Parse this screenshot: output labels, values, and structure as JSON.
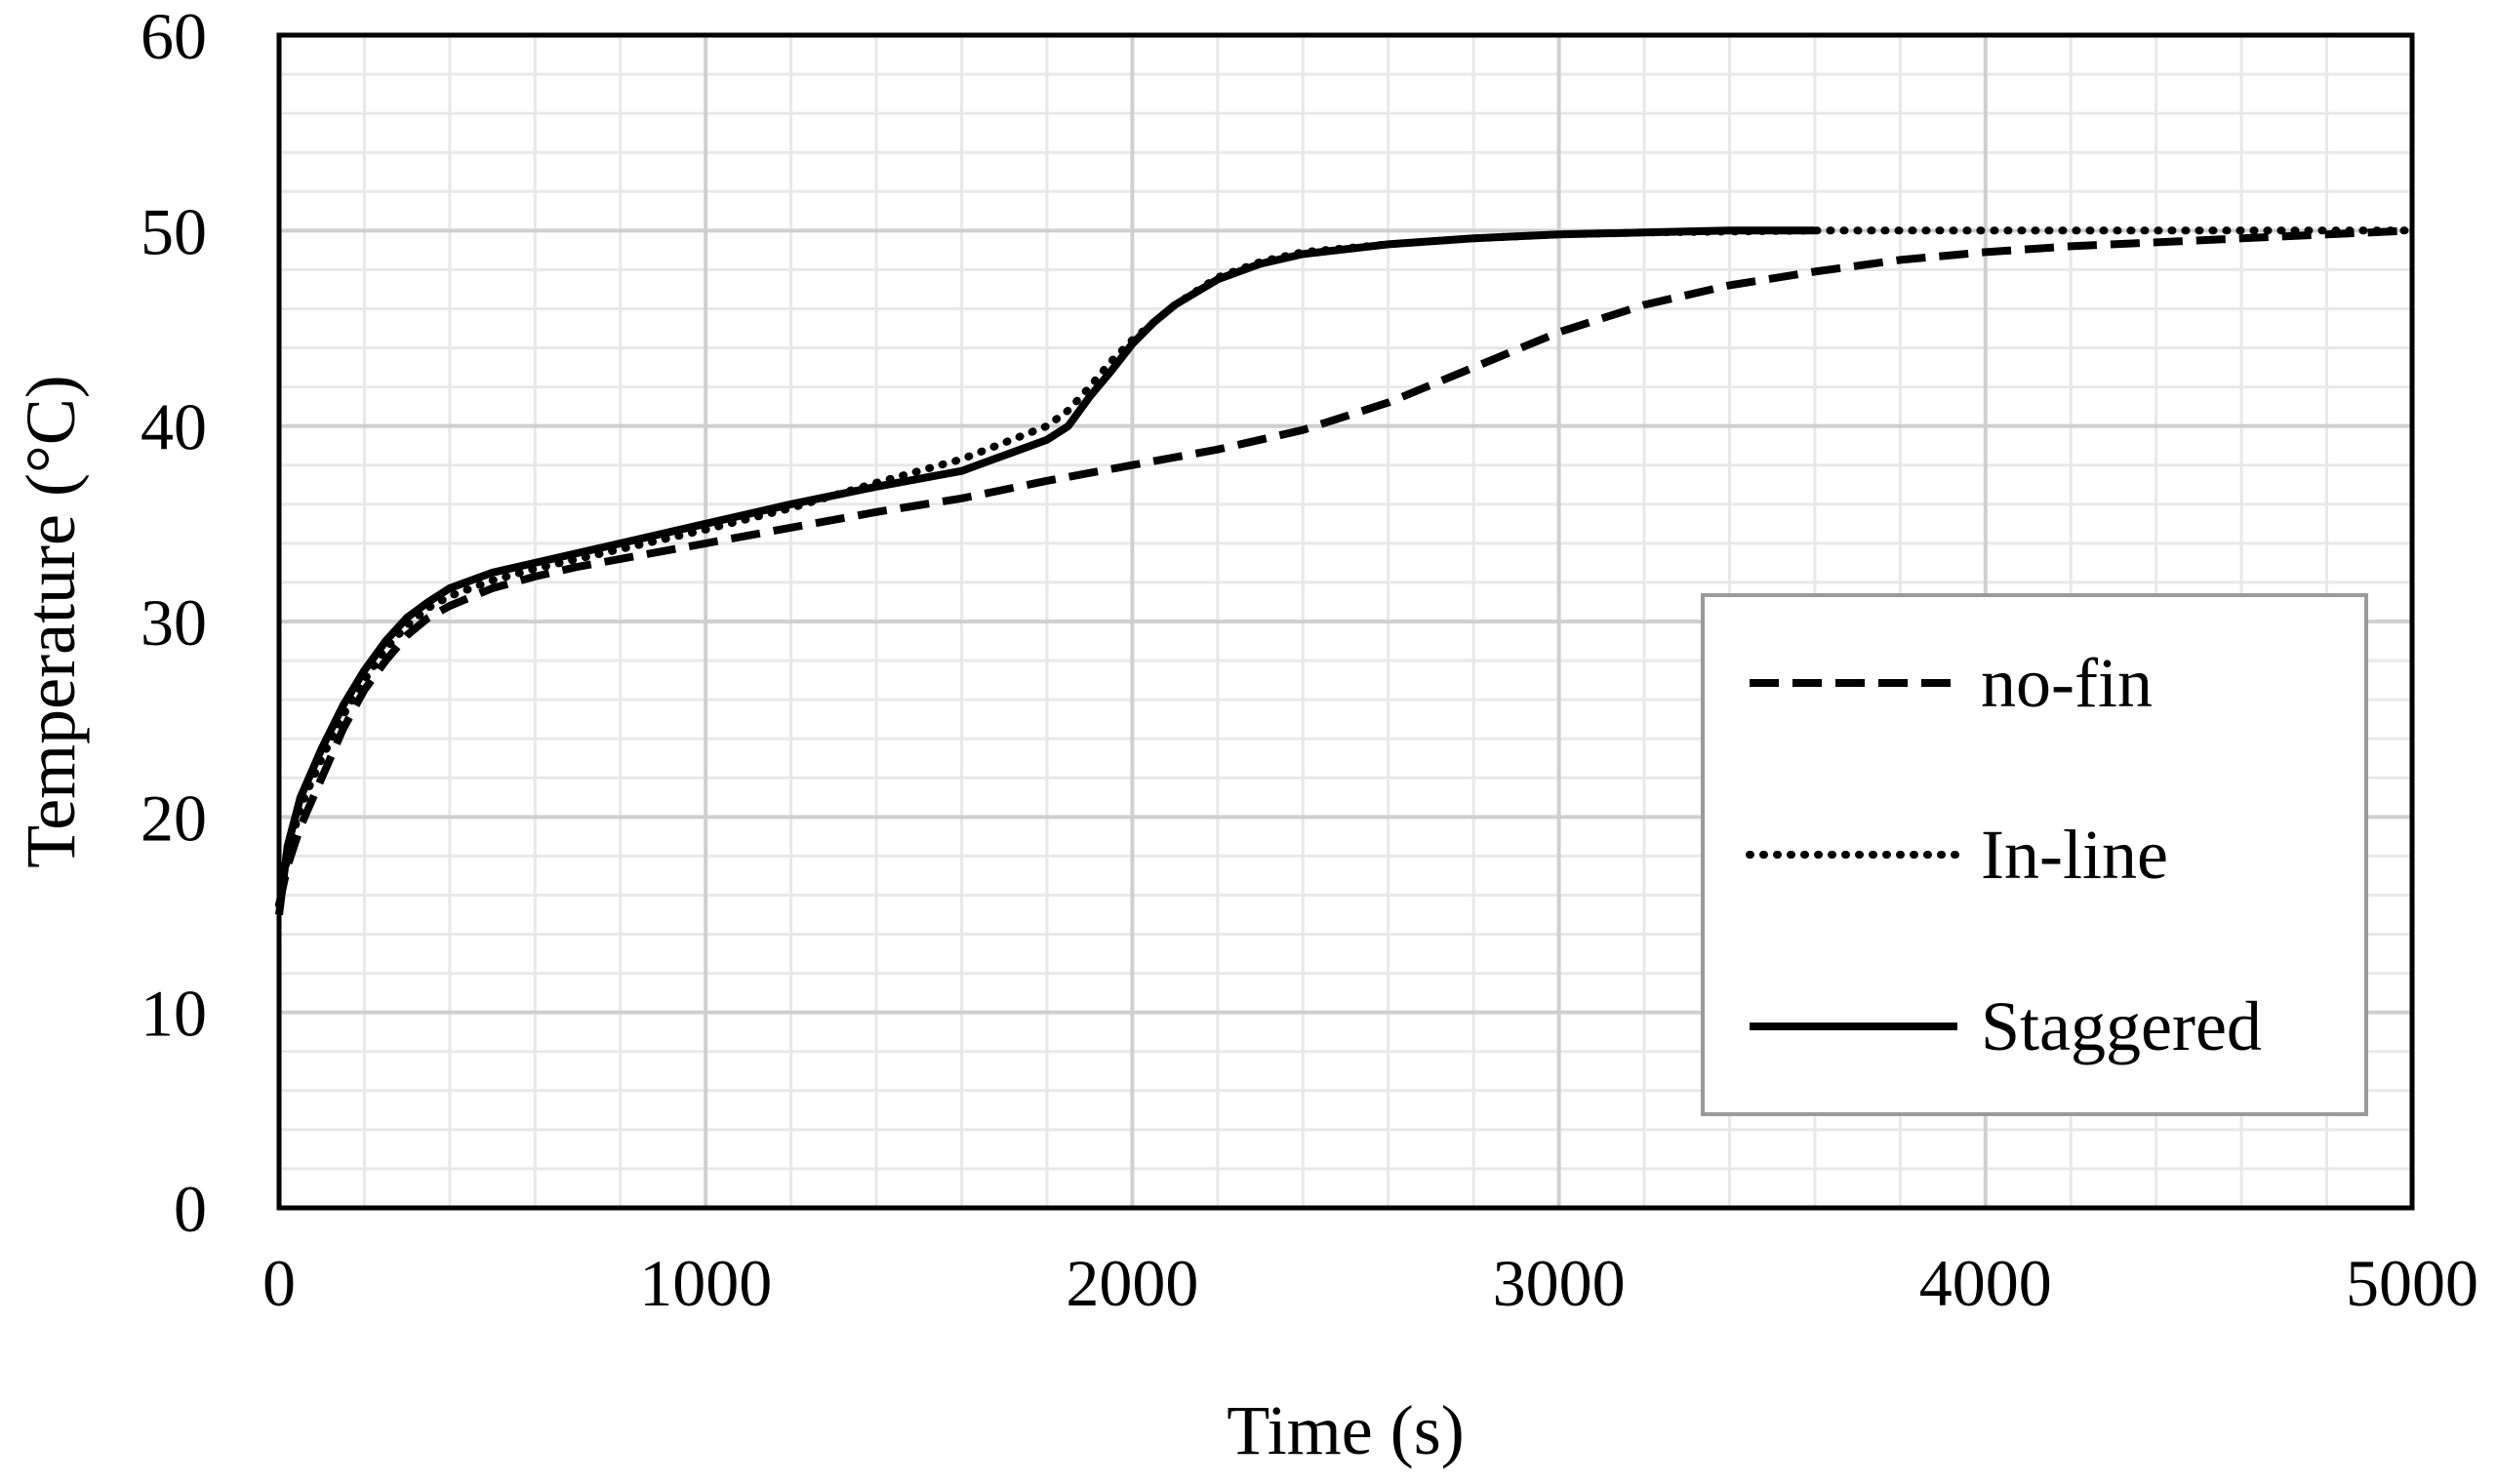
{
  "chart_data": {
    "type": "line",
    "title": "",
    "xlabel": "Time (s)",
    "ylabel": "Temperature (°C)",
    "xlim": [
      0,
      5000
    ],
    "ylim": [
      0,
      60
    ],
    "x_ticks": [
      0,
      1000,
      2000,
      3000,
      4000,
      5000
    ],
    "y_ticks": [
      0,
      10,
      20,
      30,
      40,
      50,
      60
    ],
    "x_tick_labels": [
      "0",
      "1000",
      "2000",
      "3000",
      "4000",
      "5000"
    ],
    "y_tick_labels": [
      "0",
      "10",
      "20",
      "30",
      "40",
      "50",
      "60"
    ],
    "x_minor_step": 200,
    "y_minor_step": 2,
    "grid": true,
    "legend_position": "lower-right",
    "series": [
      {
        "name": "no-fin",
        "style": "dashed",
        "color": "#000000",
        "points": [
          [
            0,
            15.5
          ],
          [
            20,
            17.5
          ],
          [
            50,
            19.5
          ],
          [
            100,
            22
          ],
          [
            150,
            24.5
          ],
          [
            200,
            26.5
          ],
          [
            250,
            28
          ],
          [
            300,
            29.3
          ],
          [
            350,
            30.2
          ],
          [
            400,
            30.8
          ],
          [
            500,
            31.7
          ],
          [
            600,
            32.3
          ],
          [
            700,
            32.8
          ],
          [
            800,
            33.2
          ],
          [
            1000,
            34
          ],
          [
            1200,
            34.8
          ],
          [
            1400,
            35.6
          ],
          [
            1600,
            36.3
          ],
          [
            1800,
            37.2
          ],
          [
            2000,
            38
          ],
          [
            2200,
            38.8
          ],
          [
            2400,
            39.8
          ],
          [
            2600,
            41.2
          ],
          [
            2800,
            43
          ],
          [
            3000,
            44.8
          ],
          [
            3200,
            46.2
          ],
          [
            3400,
            47.2
          ],
          [
            3600,
            47.9
          ],
          [
            3800,
            48.5
          ],
          [
            4000,
            48.9
          ],
          [
            4200,
            49.2
          ],
          [
            4400,
            49.4
          ],
          [
            4600,
            49.6
          ],
          [
            4800,
            49.8
          ],
          [
            5000,
            50
          ]
        ]
      },
      {
        "name": "In-line",
        "style": "dotted",
        "color": "#000000",
        "points": [
          [
            0,
            15.5
          ],
          [
            20,
            18
          ],
          [
            50,
            20.5
          ],
          [
            100,
            23
          ],
          [
            150,
            25.2
          ],
          [
            200,
            27
          ],
          [
            250,
            28.6
          ],
          [
            300,
            29.8
          ],
          [
            350,
            30.7
          ],
          [
            400,
            31.3
          ],
          [
            500,
            32.1
          ],
          [
            600,
            32.7
          ],
          [
            700,
            33.2
          ],
          [
            800,
            33.7
          ],
          [
            1000,
            34.7
          ],
          [
            1200,
            35.8
          ],
          [
            1400,
            37.1
          ],
          [
            1600,
            38.3
          ],
          [
            1800,
            40
          ],
          [
            1850,
            40.8
          ],
          [
            1900,
            42
          ],
          [
            1950,
            43.3
          ],
          [
            2000,
            44.4
          ],
          [
            2100,
            46.2
          ],
          [
            2200,
            47.6
          ],
          [
            2300,
            48.4
          ],
          [
            2400,
            48.9
          ],
          [
            2600,
            49.3
          ],
          [
            2800,
            49.6
          ],
          [
            3000,
            49.8
          ],
          [
            3200,
            49.9
          ],
          [
            3600,
            50
          ],
          [
            4000,
            50
          ],
          [
            4500,
            50
          ],
          [
            5000,
            50
          ]
        ]
      },
      {
        "name": "Staggered",
        "style": "solid",
        "color": "#000000",
        "points": [
          [
            0,
            15
          ],
          [
            20,
            18.5
          ],
          [
            50,
            21
          ],
          [
            100,
            23.5
          ],
          [
            150,
            25.7
          ],
          [
            200,
            27.5
          ],
          [
            250,
            29
          ],
          [
            300,
            30.2
          ],
          [
            350,
            31
          ],
          [
            400,
            31.7
          ],
          [
            500,
            32.5
          ],
          [
            600,
            33
          ],
          [
            700,
            33.5
          ],
          [
            800,
            34
          ],
          [
            1000,
            35
          ],
          [
            1200,
            36
          ],
          [
            1400,
            36.9
          ],
          [
            1600,
            37.7
          ],
          [
            1700,
            38.5
          ],
          [
            1800,
            39.3
          ],
          [
            1850,
            40
          ],
          [
            1900,
            41.5
          ],
          [
            1950,
            42.8
          ],
          [
            2000,
            44.2
          ],
          [
            2050,
            45.3
          ],
          [
            2100,
            46.2
          ],
          [
            2200,
            47.5
          ],
          [
            2300,
            48.3
          ],
          [
            2400,
            48.8
          ],
          [
            2600,
            49.3
          ],
          [
            2800,
            49.6
          ],
          [
            3000,
            49.8
          ],
          [
            3200,
            49.9
          ],
          [
            3400,
            50
          ],
          [
            3600,
            50
          ]
        ]
      }
    ]
  }
}
